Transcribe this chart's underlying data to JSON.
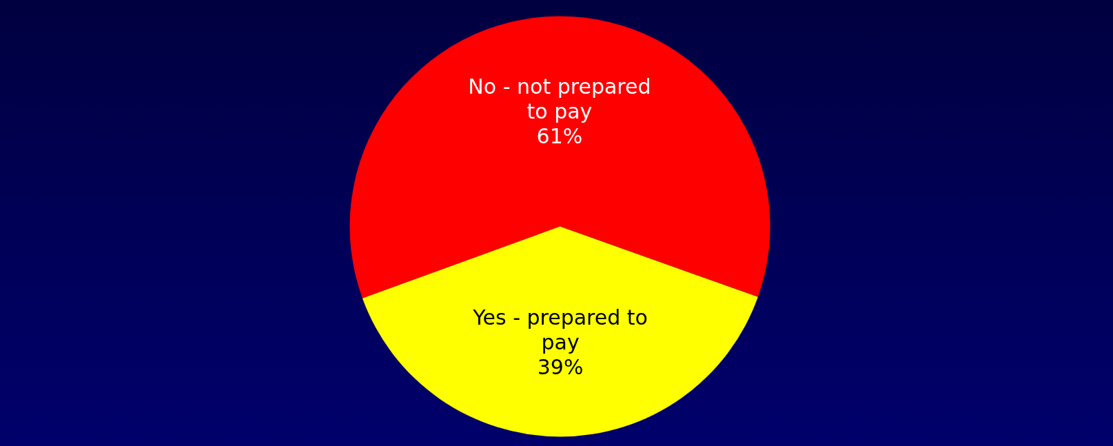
{
  "chart_data": {
    "type": "pie",
    "categories": [
      "No - not prepared to pay",
      "Yes - prepared to pay"
    ],
    "values": [
      61,
      39
    ],
    "colors": [
      "#ff0000",
      "#ffff00"
    ],
    "value_labels": [
      "61%",
      "39%"
    ]
  }
}
